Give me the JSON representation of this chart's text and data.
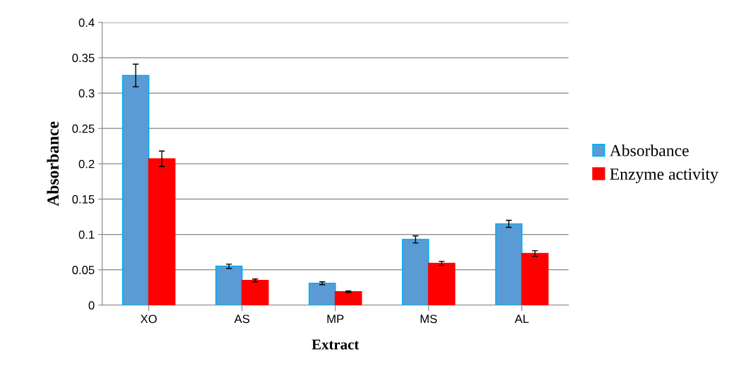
{
  "chart_data": {
    "type": "bar",
    "xlabel": "Extract",
    "ylabel": "Absorbance",
    "categories": [
      "XO",
      "AS",
      "MP",
      "MS",
      "AL"
    ],
    "series": [
      {
        "name": "Absorbance",
        "color": "#5b9bd5",
        "values": [
          0.325,
          0.055,
          0.031,
          0.093,
          0.115
        ],
        "errors": [
          0.016,
          0.003,
          0.002,
          0.005,
          0.005
        ]
      },
      {
        "name": "Enzyme activity",
        "color": "#ff0000",
        "values": [
          0.207,
          0.035,
          0.019,
          0.059,
          0.073
        ],
        "errors": [
          0.011,
          0.002,
          0.001,
          0.003,
          0.004
        ]
      }
    ],
    "ylim": [
      0,
      0.4
    ],
    "yticks": [
      {
        "value": 0,
        "label": "0"
      },
      0.05,
      0.1,
      0.15,
      0.2,
      0.25,
      0.3,
      0.35,
      0.4
    ],
    "grid": "y",
    "legend": "right"
  }
}
